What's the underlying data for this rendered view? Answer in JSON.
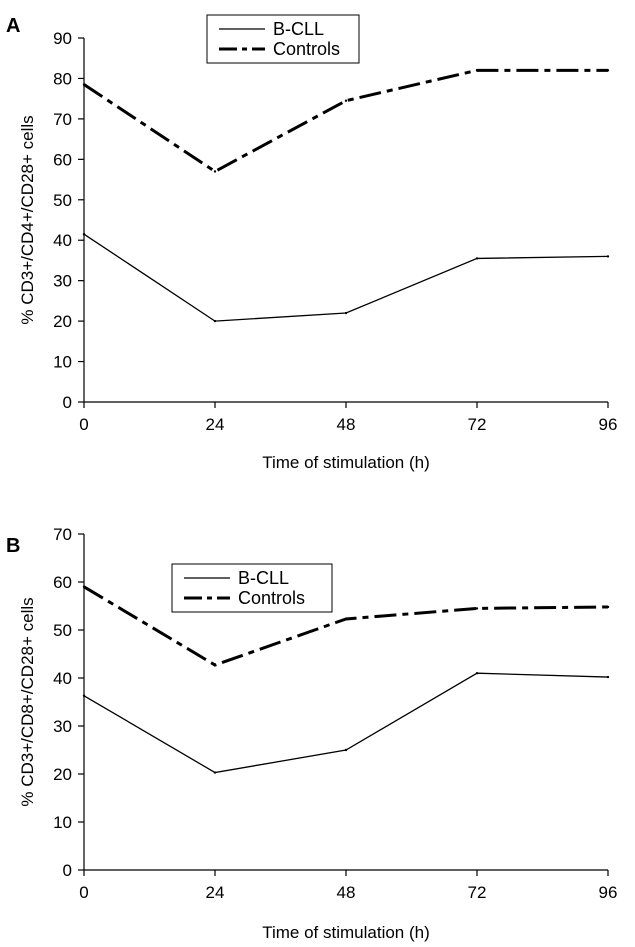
{
  "chart_data": [
    {
      "type": "line",
      "panel_label": "A",
      "x": [
        0,
        24,
        48,
        72,
        96
      ],
      "xticks": [
        "0",
        "24",
        "48",
        "72",
        "96"
      ],
      "xlim": [
        0,
        96
      ],
      "ylim": [
        0,
        90
      ],
      "yticks": [
        0,
        10,
        20,
        30,
        40,
        50,
        60,
        70,
        80,
        90
      ],
      "xlabel": "Time of stimulation (h)",
      "ylabel": "% CD3+/CD4+/CD28+ cells",
      "legend_position": "top-center",
      "series": [
        {
          "name": "B-CLL",
          "values": [
            41.5,
            20,
            22,
            35.5,
            36
          ],
          "color": "#000000",
          "style": "solid"
        },
        {
          "name": "Controls",
          "values": [
            78.5,
            57,
            74.5,
            82,
            82
          ],
          "color": "#000000",
          "style": "dash-dot"
        }
      ]
    },
    {
      "type": "line",
      "panel_label": "B",
      "x": [
        0,
        24,
        48,
        72,
        96
      ],
      "xticks": [
        "0",
        "24",
        "48",
        "72",
        "96"
      ],
      "xlim": [
        0,
        96
      ],
      "ylim": [
        0,
        70
      ],
      "yticks": [
        0,
        10,
        20,
        30,
        40,
        50,
        60,
        70
      ],
      "xlabel": "Time of stimulation (h)",
      "ylabel": "% CD3+/CD8+/CD28+ cells",
      "legend_position": "top-left",
      "series": [
        {
          "name": "B-CLL",
          "values": [
            36.3,
            20.3,
            25,
            41,
            40.2
          ],
          "color": "#000000",
          "style": "solid"
        },
        {
          "name": "Controls",
          "values": [
            59,
            42.7,
            52.3,
            54.5,
            54.8
          ],
          "color": "#000000",
          "style": "dash-dot"
        }
      ]
    }
  ]
}
